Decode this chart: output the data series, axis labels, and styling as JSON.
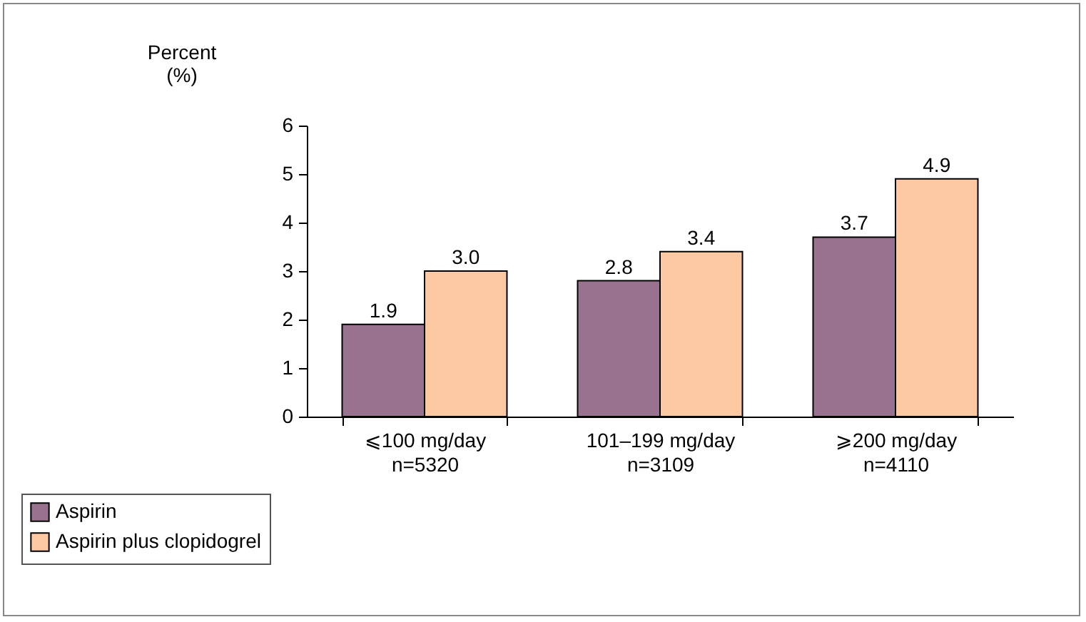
{
  "chart_data": {
    "type": "bar",
    "ylabel": "Percent\n(%)",
    "categories": [
      "⩽100 mg/day\nn=5320",
      "101–199 mg/day\nn=3109",
      "⩾200 mg/day\nn=4110"
    ],
    "series": [
      {
        "name": "Aspirin",
        "color": "#98728f",
        "values": [
          1.9,
          2.8,
          3.7
        ],
        "value_labels": [
          "1.9",
          "2.8",
          "3.7"
        ]
      },
      {
        "name": "Aspirin plus clopidogrel",
        "color": "#fcc9a3",
        "values": [
          3.0,
          3.4,
          4.9
        ],
        "value_labels": [
          "3.0",
          "3.4",
          "4.9"
        ]
      }
    ],
    "ylim": [
      0,
      6
    ],
    "yticks": [
      0,
      1,
      2,
      3,
      4,
      5,
      6
    ],
    "grid": false,
    "legend": "bottom left"
  }
}
